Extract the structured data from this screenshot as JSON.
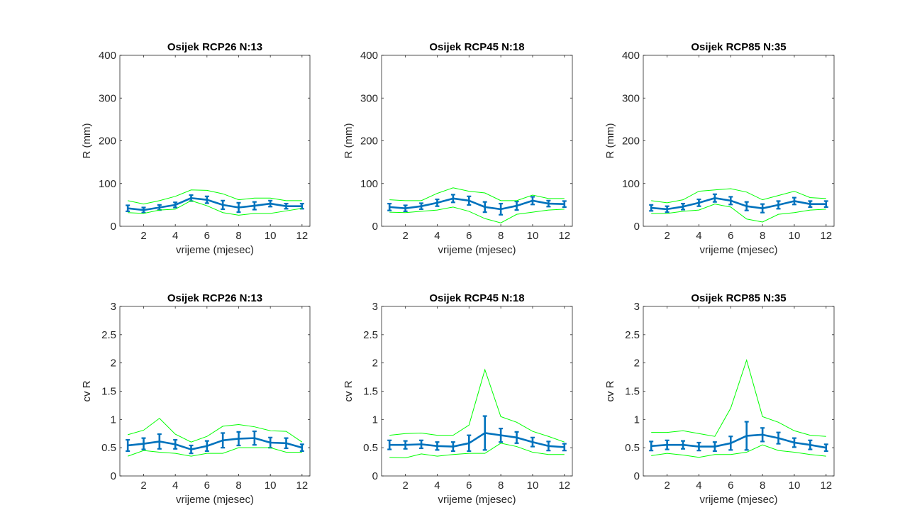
{
  "colors": {
    "mean": "#0072BD",
    "bounds": "#00FF00",
    "axis": "#262626"
  },
  "chart_data": [
    {
      "type": "line",
      "title": "Osijek RCP26 N:13",
      "xlabel": "vrijeme (mjesec)",
      "ylabel": "R (mm)",
      "xlim": [
        0.5,
        12.5
      ],
      "ylim": [
        0,
        400
      ],
      "xticks": [
        2,
        4,
        6,
        8,
        10,
        12
      ],
      "yticks": [
        0,
        100,
        200,
        300,
        400
      ],
      "x": [
        1,
        2,
        3,
        4,
        5,
        6,
        7,
        8,
        9,
        10,
        11,
        12
      ],
      "series": [
        {
          "role": "mean",
          "values": [
            42,
            38,
            44,
            50,
            66,
            62,
            50,
            44,
            48,
            53,
            47,
            47
          ],
          "errors": [
            7,
            6,
            6,
            6,
            7,
            8,
            10,
            11,
            9,
            7,
            6,
            6
          ]
        },
        {
          "role": "upper",
          "values": [
            60,
            52,
            60,
            70,
            85,
            84,
            76,
            62,
            66,
            66,
            60,
            60
          ]
        },
        {
          "role": "lower",
          "values": [
            32,
            30,
            38,
            40,
            60,
            48,
            32,
            26,
            30,
            30,
            36,
            42
          ]
        }
      ]
    },
    {
      "type": "line",
      "title": "Osijek RCP45 N:18",
      "xlabel": "vrijeme (mjesec)",
      "ylabel": "R (mm)",
      "xlim": [
        0.5,
        12.5
      ],
      "ylim": [
        0,
        400
      ],
      "xticks": [
        2,
        4,
        6,
        8,
        10,
        12
      ],
      "yticks": [
        0,
        100,
        200,
        300,
        400
      ],
      "x": [
        1,
        2,
        3,
        4,
        5,
        6,
        7,
        8,
        9,
        10,
        11,
        12
      ],
      "series": [
        {
          "role": "mean",
          "values": [
            45,
            42,
            47,
            55,
            65,
            60,
            45,
            40,
            48,
            60,
            53,
            52
          ],
          "errors": [
            8,
            7,
            7,
            8,
            9,
            10,
            12,
            13,
            10,
            9,
            7,
            7
          ]
        },
        {
          "role": "upper",
          "values": [
            62,
            60,
            60,
            77,
            90,
            82,
            78,
            60,
            60,
            73,
            65,
            65
          ]
        },
        {
          "role": "lower",
          "values": [
            33,
            32,
            35,
            38,
            45,
            35,
            18,
            8,
            28,
            33,
            38,
            40
          ]
        }
      ]
    },
    {
      "type": "line",
      "title": "Osijek RCP85 N:35",
      "xlabel": "vrijeme (mjesec)",
      "ylabel": "R (mm)",
      "xlim": [
        0.5,
        12.5
      ],
      "ylim": [
        0,
        400
      ],
      "xticks": [
        2,
        4,
        6,
        8,
        10,
        12
      ],
      "yticks": [
        0,
        100,
        200,
        300,
        400
      ],
      "x": [
        1,
        2,
        3,
        4,
        5,
        6,
        7,
        8,
        9,
        10,
        11,
        12
      ],
      "series": [
        {
          "role": "mean",
          "values": [
            43,
            40,
            46,
            55,
            66,
            60,
            47,
            42,
            50,
            59,
            52,
            52
          ],
          "errors": [
            7,
            7,
            7,
            8,
            9,
            9,
            10,
            10,
            9,
            8,
            7,
            7
          ]
        },
        {
          "role": "upper",
          "values": [
            60,
            55,
            62,
            82,
            85,
            88,
            80,
            62,
            72,
            82,
            67,
            65
          ]
        },
        {
          "role": "lower",
          "values": [
            30,
            30,
            35,
            38,
            52,
            45,
            17,
            10,
            28,
            32,
            38,
            40
          ]
        }
      ]
    },
    {
      "type": "line",
      "title": "Osijek RCP26 N:13",
      "xlabel": "vrijeme (mjesec)",
      "ylabel": "cv R",
      "xlim": [
        0.5,
        12.5
      ],
      "ylim": [
        0,
        3
      ],
      "xticks": [
        2,
        4,
        6,
        8,
        10,
        12
      ],
      "yticks": [
        0,
        0.5,
        1,
        1.5,
        2,
        2.5,
        3
      ],
      "x": [
        1,
        2,
        3,
        4,
        5,
        6,
        7,
        8,
        9,
        10,
        11,
        12
      ],
      "series": [
        {
          "role": "mean",
          "values": [
            0.54,
            0.57,
            0.61,
            0.56,
            0.47,
            0.53,
            0.63,
            0.66,
            0.67,
            0.59,
            0.58,
            0.5
          ],
          "errors": [
            0.1,
            0.1,
            0.13,
            0.08,
            0.07,
            0.09,
            0.13,
            0.12,
            0.12,
            0.09,
            0.09,
            0.06
          ]
        },
        {
          "role": "upper",
          "values": [
            0.73,
            0.81,
            1.02,
            0.74,
            0.6,
            0.7,
            0.88,
            0.91,
            0.87,
            0.8,
            0.79,
            0.6
          ]
        },
        {
          "role": "lower",
          "values": [
            0.35,
            0.45,
            0.42,
            0.4,
            0.35,
            0.4,
            0.4,
            0.5,
            0.5,
            0.5,
            0.42,
            0.42
          ]
        }
      ]
    },
    {
      "type": "line",
      "title": "Osijek RCP45 N:18",
      "xlabel": "vrijeme (mjesec)",
      "ylabel": "cv R",
      "xlim": [
        0.5,
        12.5
      ],
      "ylim": [
        0,
        3
      ],
      "xticks": [
        2,
        4,
        6,
        8,
        10,
        12
      ],
      "yticks": [
        0,
        0.5,
        1,
        1.5,
        2,
        2.5,
        3
      ],
      "x": [
        1,
        2,
        3,
        4,
        5,
        6,
        7,
        8,
        9,
        10,
        11,
        12
      ],
      "series": [
        {
          "role": "mean",
          "values": [
            0.55,
            0.55,
            0.56,
            0.53,
            0.52,
            0.58,
            0.76,
            0.72,
            0.68,
            0.6,
            0.53,
            0.51
          ],
          "errors": [
            0.08,
            0.07,
            0.07,
            0.07,
            0.08,
            0.14,
            0.3,
            0.12,
            0.1,
            0.08,
            0.08,
            0.06
          ]
        },
        {
          "role": "upper",
          "values": [
            0.72,
            0.75,
            0.76,
            0.72,
            0.72,
            0.9,
            1.88,
            1.05,
            0.95,
            0.79,
            0.7,
            0.6
          ]
        },
        {
          "role": "lower",
          "values": [
            0.33,
            0.32,
            0.39,
            0.35,
            0.38,
            0.4,
            0.4,
            0.58,
            0.52,
            0.42,
            0.38,
            0.38
          ]
        }
      ]
    },
    {
      "type": "line",
      "title": "Osijek RCP85 N:35",
      "xlabel": "vrijeme (mjesec)",
      "ylabel": "cv R",
      "xlim": [
        0.5,
        12.5
      ],
      "ylim": [
        0,
        3
      ],
      "xticks": [
        2,
        4,
        6,
        8,
        10,
        12
      ],
      "yticks": [
        0,
        0.5,
        1,
        1.5,
        2,
        2.5,
        3
      ],
      "x": [
        1,
        2,
        3,
        4,
        5,
        6,
        7,
        8,
        9,
        10,
        11,
        12
      ],
      "series": [
        {
          "role": "mean",
          "values": [
            0.53,
            0.55,
            0.55,
            0.52,
            0.52,
            0.58,
            0.71,
            0.73,
            0.67,
            0.59,
            0.55,
            0.5
          ],
          "errors": [
            0.08,
            0.08,
            0.07,
            0.07,
            0.08,
            0.12,
            0.25,
            0.12,
            0.1,
            0.08,
            0.08,
            0.06
          ]
        },
        {
          "role": "upper",
          "values": [
            0.77,
            0.77,
            0.8,
            0.75,
            0.7,
            1.2,
            2.05,
            1.05,
            0.95,
            0.8,
            0.72,
            0.7
          ]
        },
        {
          "role": "lower",
          "values": [
            0.36,
            0.4,
            0.37,
            0.33,
            0.38,
            0.38,
            0.42,
            0.55,
            0.45,
            0.42,
            0.38,
            0.35
          ]
        }
      ]
    }
  ]
}
